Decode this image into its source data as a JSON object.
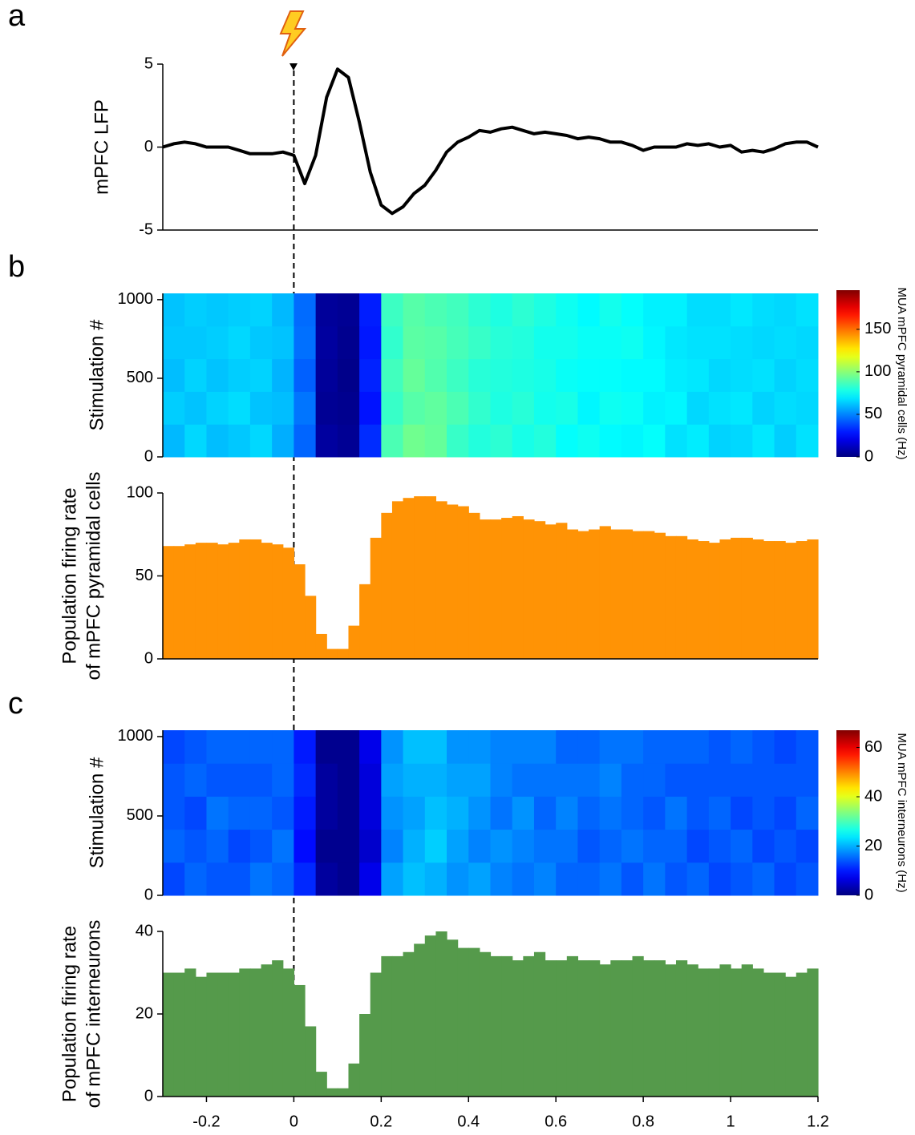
{
  "chart_data": [
    {
      "type": "line",
      "panel": "a",
      "ylabel": "mPFC LFP",
      "color": "#000000",
      "vline": 0,
      "xlim": [
        -0.3,
        1.2
      ],
      "ylim": [
        -5,
        5
      ],
      "yticks": [
        -5,
        0,
        5
      ],
      "x": [
        -0.3,
        -0.275,
        -0.25,
        -0.225,
        -0.2,
        -0.175,
        -0.15,
        -0.125,
        -0.1,
        -0.075,
        -0.05,
        -0.025,
        0,
        0.025,
        0.05,
        0.075,
        0.1,
        0.125,
        0.15,
        0.175,
        0.2,
        0.225,
        0.25,
        0.275,
        0.3,
        0.325,
        0.35,
        0.375,
        0.4,
        0.425,
        0.45,
        0.475,
        0.5,
        0.525,
        0.55,
        0.575,
        0.6,
        0.625,
        0.65,
        0.675,
        0.7,
        0.725,
        0.75,
        0.775,
        0.8,
        0.825,
        0.85,
        0.875,
        0.9,
        0.925,
        0.95,
        0.975,
        1.0,
        1.025,
        1.05,
        1.075,
        1.1,
        1.125,
        1.15,
        1.175,
        1.2
      ],
      "values": [
        0,
        0.2,
        0.3,
        0.2,
        0,
        0,
        0,
        -0.2,
        -0.4,
        -0.4,
        -0.4,
        -0.3,
        -0.5,
        -2.2,
        -0.5,
        3,
        4.7,
        4.2,
        1.5,
        -1.5,
        -3.5,
        -4,
        -3.6,
        -2.8,
        -2.3,
        -1.4,
        -0.3,
        0.3,
        0.6,
        1.0,
        0.9,
        1.1,
        1.2,
        1.0,
        0.8,
        0.9,
        0.8,
        0.7,
        0.5,
        0.6,
        0.5,
        0.3,
        0.3,
        0.1,
        -0.2,
        0,
        0,
        0,
        0.2,
        0.1,
        0.2,
        0,
        0.1,
        -0.3,
        -0.2,
        -0.3,
        -0.1,
        0.2,
        0.3,
        0.3,
        0
      ]
    },
    {
      "type": "heatmap",
      "panel": "b",
      "ylabel": "Stimulation #",
      "xlim": [
        -0.3,
        1.2
      ],
      "ylim": [
        0,
        1040
      ],
      "yticks": [
        0,
        500,
        1000
      ],
      "xbins": [
        -0.3,
        -0.25,
        -0.2,
        -0.15,
        -0.1,
        -0.05,
        0,
        0.05,
        0.1,
        0.15,
        0.2,
        0.25,
        0.3,
        0.35,
        0.4,
        0.45,
        0.5,
        0.55,
        0.6,
        0.65,
        0.7,
        0.75,
        0.8,
        0.85,
        0.9,
        0.95,
        1.0,
        1.05,
        1.1,
        1.15,
        1.2
      ],
      "ybins": [
        0,
        208,
        416,
        624,
        832,
        1040
      ],
      "values": [
        [
          60,
          66,
          61,
          63,
          66,
          58,
          44,
          6,
          4,
          33,
          88,
          95,
          93,
          84,
          80,
          82,
          78,
          80,
          74,
          76,
          73,
          72,
          74,
          68,
          70,
          65,
          66,
          69,
          64,
          68
        ],
        [
          64,
          62,
          65,
          67,
          62,
          61,
          47,
          4,
          3,
          28,
          84,
          90,
          92,
          88,
          83,
          79,
          81,
          77,
          78,
          72,
          76,
          75,
          71,
          72,
          66,
          68,
          69,
          65,
          67,
          66
        ],
        [
          61,
          65,
          62,
          64,
          65,
          59,
          43,
          5,
          2,
          31,
          86,
          93,
          89,
          85,
          81,
          80,
          79,
          78,
          75,
          74,
          74,
          73,
          73,
          70,
          69,
          66,
          67,
          68,
          65,
          67
        ],
        [
          63,
          63,
          64,
          66,
          63,
          62,
          46,
          6,
          3,
          29,
          83,
          91,
          90,
          87,
          84,
          81,
          80,
          77,
          77,
          75,
          75,
          76,
          72,
          69,
          68,
          68,
          67,
          66,
          67,
          66
        ],
        [
          62,
          64,
          63,
          64,
          65,
          60,
          45,
          5,
          4,
          30,
          85,
          90,
          88,
          86,
          82,
          79,
          82,
          79,
          76,
          73,
          77,
          74,
          71,
          71,
          67,
          67,
          69,
          67,
          66,
          68
        ]
      ],
      "colorbar": {
        "label": "MUA mPFC pyramidal cells (Hz)",
        "colormap": "jet",
        "clim": [
          0,
          196
        ],
        "ticks": [
          0,
          50,
          100,
          150
        ]
      }
    },
    {
      "type": "histogram",
      "ylabel": [
        "Population firing rate",
        "of mPFC pyramidal cells"
      ],
      "color": "#ff9305",
      "xlim": [
        -0.3,
        1.2
      ],
      "ylim": [
        0,
        100
      ],
      "yticks": [
        0,
        50,
        100
      ],
      "bins": [
        -0.3,
        -0.275,
        -0.25,
        -0.225,
        -0.2,
        -0.175,
        -0.15,
        -0.125,
        -0.1,
        -0.075,
        -0.05,
        -0.025,
        0,
        0.025,
        0.05,
        0.075,
        0.1,
        0.125,
        0.15,
        0.175,
        0.2,
        0.225,
        0.25,
        0.275,
        0.3,
        0.325,
        0.35,
        0.375,
        0.4,
        0.425,
        0.45,
        0.475,
        0.5,
        0.525,
        0.55,
        0.575,
        0.6,
        0.625,
        0.65,
        0.675,
        0.7,
        0.725,
        0.75,
        0.775,
        0.8,
        0.825,
        0.85,
        0.875,
        0.9,
        0.925,
        0.95,
        0.975,
        1.0,
        1.025,
        1.05,
        1.075,
        1.1,
        1.125,
        1.15,
        1.175,
        1.2
      ],
      "values": [
        68,
        68,
        69,
        70,
        70,
        69,
        70,
        72,
        72,
        70,
        69,
        67,
        57,
        38,
        15,
        6,
        6,
        20,
        45,
        73,
        88,
        95,
        97,
        98,
        98,
        95,
        93,
        92,
        88,
        84,
        84,
        85,
        86,
        84,
        83,
        81,
        82,
        78,
        77,
        78,
        80,
        78,
        78,
        77,
        77,
        76,
        74,
        74,
        72,
        71,
        70,
        72,
        73,
        73,
        72,
        71,
        71,
        70,
        71,
        72
      ]
    },
    {
      "type": "heatmap",
      "panel": "c",
      "ylabel": "Stimulation #",
      "xlim": [
        -0.3,
        1.2
      ],
      "ylim": [
        0,
        1040
      ],
      "yticks": [
        0,
        500,
        1000
      ],
      "xbins": [
        -0.3,
        -0.25,
        -0.2,
        -0.15,
        -0.1,
        -0.05,
        0,
        0.05,
        0.1,
        0.15,
        0.2,
        0.25,
        0.3,
        0.35,
        0.4,
        0.45,
        0.5,
        0.55,
        0.6,
        0.65,
        0.7,
        0.75,
        0.8,
        0.85,
        0.9,
        0.95,
        1.0,
        1.05,
        1.1,
        1.15,
        1.2
      ],
      "ybins": [
        0,
        208,
        416,
        624,
        832,
        1040
      ],
      "values": [
        [
          13,
          15,
          14,
          14,
          16,
          15,
          11,
          2,
          1,
          7,
          19,
          21,
          20,
          18,
          19,
          17,
          16,
          17,
          15,
          15,
          16,
          14,
          16,
          14,
          15,
          13,
          14,
          15,
          13,
          14
        ],
        [
          15,
          14,
          15,
          13,
          14,
          16,
          9,
          1,
          1,
          5,
          17,
          20,
          22,
          19,
          17,
          18,
          17,
          16,
          16,
          14,
          15,
          16,
          15,
          15,
          13,
          14,
          15,
          13,
          14,
          13
        ],
        [
          14,
          13,
          16,
          15,
          15,
          14,
          10,
          2,
          1,
          6,
          18,
          19,
          21,
          20,
          18,
          16,
          18,
          15,
          17,
          15,
          16,
          15,
          14,
          16,
          14,
          15,
          13,
          14,
          13,
          15
        ],
        [
          14,
          15,
          14,
          14,
          14,
          15,
          11,
          2,
          1,
          6,
          19,
          20,
          20,
          19,
          19,
          17,
          16,
          16,
          16,
          16,
          17,
          15,
          15,
          14,
          14,
          14,
          14,
          14,
          14,
          14
        ],
        [
          13,
          14,
          15,
          15,
          15,
          15,
          10,
          1,
          1,
          7,
          18,
          21,
          21,
          18,
          18,
          17,
          17,
          17,
          15,
          15,
          16,
          16,
          15,
          15,
          15,
          14,
          15,
          14,
          13,
          14
        ]
      ],
      "colorbar": {
        "label": "MUA mPFC interneurons (Hz)",
        "colormap": "jet",
        "clim": [
          0,
          67
        ],
        "ticks": [
          0,
          20,
          40,
          60
        ]
      }
    },
    {
      "type": "histogram",
      "ylabel": [
        "Population firing rate",
        "of mPFC interneurons"
      ],
      "color": "#559a4b",
      "xlim": [
        -0.3,
        1.2
      ],
      "ylim": [
        0,
        40
      ],
      "yticks": [
        0,
        20,
        40
      ],
      "xticks": [
        -0.2,
        0,
        0.2,
        0.4,
        0.6,
        0.8,
        1,
        1.2
      ],
      "bins": [
        -0.3,
        -0.275,
        -0.25,
        -0.225,
        -0.2,
        -0.175,
        -0.15,
        -0.125,
        -0.1,
        -0.075,
        -0.05,
        -0.025,
        0,
        0.025,
        0.05,
        0.075,
        0.1,
        0.125,
        0.15,
        0.175,
        0.2,
        0.225,
        0.25,
        0.275,
        0.3,
        0.325,
        0.35,
        0.375,
        0.4,
        0.425,
        0.45,
        0.475,
        0.5,
        0.525,
        0.55,
        0.575,
        0.6,
        0.625,
        0.65,
        0.675,
        0.7,
        0.725,
        0.75,
        0.775,
        0.8,
        0.825,
        0.85,
        0.875,
        0.9,
        0.925,
        0.95,
        0.975,
        1.0,
        1.025,
        1.05,
        1.075,
        1.1,
        1.125,
        1.15,
        1.175,
        1.2
      ],
      "values": [
        30,
        30,
        31,
        29,
        30,
        30,
        30,
        31,
        31,
        32,
        33,
        31,
        27,
        17,
        6,
        2,
        2,
        8,
        20,
        30,
        34,
        34,
        35,
        37,
        39,
        40,
        38,
        36,
        36,
        35,
        34,
        34,
        33,
        34,
        35,
        33,
        33,
        34,
        33,
        33,
        32,
        33,
        33,
        34,
        33,
        33,
        32,
        33,
        32,
        31,
        31,
        32,
        31,
        32,
        31,
        30,
        30,
        29,
        30,
        31
      ]
    }
  ]
}
